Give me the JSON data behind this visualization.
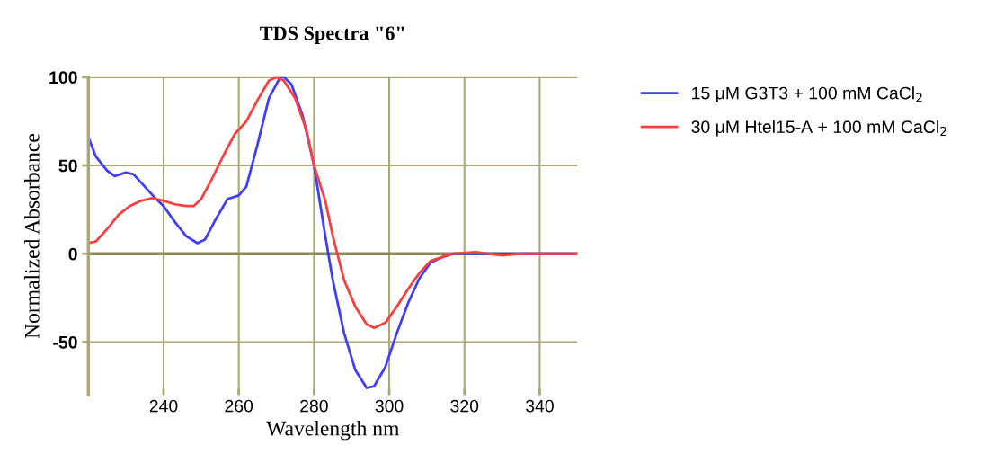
{
  "chart_data": {
    "type": "line",
    "title": "TDS Spectra \"6\"",
    "xlabel": "Wavelength nm",
    "ylabel": "Normalized Absorbance",
    "xlim": [
      220,
      350
    ],
    "xticks": [
      240,
      260,
      280,
      300,
      320,
      340
    ],
    "ylim": [
      -80,
      100
    ],
    "yticks": [
      -50,
      0,
      50,
      100
    ],
    "grid": true,
    "legend": "top right",
    "marker": "none",
    "line_style": "solid",
    "ref_lines": [
      {
        "axis": "y",
        "value": 0,
        "color": "#8c8c5a"
      }
    ],
    "series": [
      {
        "name": "15 μM G3T3 + 100 mM CaCl$_{2}$",
        "color": "#3f3fff",
        "x": [
          220,
          222,
          225,
          227,
          230,
          232,
          235,
          238,
          240,
          243,
          246,
          249,
          251,
          254,
          257,
          260,
          262,
          265,
          268,
          271,
          272,
          274,
          277,
          280,
          283,
          285,
          288,
          291,
          294,
          296,
          299,
          302,
          305,
          308,
          311,
          314,
          317,
          320,
          330,
          340,
          350
        ],
        "values": [
          66,
          55,
          47,
          44,
          46,
          45,
          38,
          31,
          27,
          18,
          10,
          6,
          8,
          20,
          31,
          33,
          38,
          62,
          88,
          100,
          100,
          96,
          78,
          50,
          10,
          -15,
          -45,
          -66,
          -76,
          -75,
          -64,
          -45,
          -28,
          -14,
          -5,
          -2,
          0,
          0,
          0,
          0,
          0
        ]
      },
      {
        "name": "30 μM Htel15-A + 100 mM CaCl$_{2}$",
        "color": "#ff3f3f",
        "x": [
          220,
          222,
          225,
          228,
          231,
          234,
          237,
          240,
          243,
          246,
          248,
          250,
          253,
          256,
          259,
          262,
          265,
          268,
          270,
          272,
          275,
          278,
          280,
          283,
          285,
          288,
          291,
          294,
          296,
          299,
          302,
          305,
          308,
          311,
          314,
          317,
          323,
          330,
          335,
          340,
          350
        ],
        "values": [
          6,
          7,
          14,
          22,
          27,
          30,
          31.5,
          30,
          28,
          27,
          27,
          31,
          43,
          56,
          68,
          75,
          87,
          98,
          100,
          98,
          88,
          70,
          50,
          30,
          10,
          -15,
          -30,
          -40,
          -42,
          -39,
          -30,
          -20,
          -11,
          -4,
          -2,
          0,
          1,
          -1,
          0,
          0,
          0
        ]
      }
    ]
  }
}
